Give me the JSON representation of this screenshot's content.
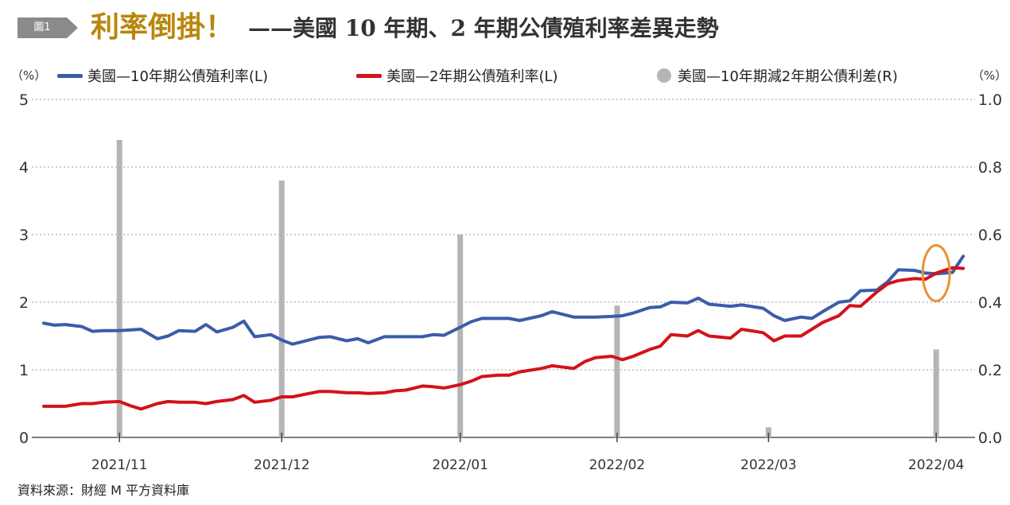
{
  "header": {
    "badge": "圖1",
    "title_main": "利率倒掛！",
    "title_sub": "——美國 10 年期、2 年期公債殖利率差異走勢"
  },
  "legend": {
    "left_unit": "（%）",
    "right_unit": "（%）",
    "items": [
      {
        "label": "美國—10年期公債殖利率(L)",
        "color": "#3a5da8"
      },
      {
        "label": "美國—2年期公債殖利率(L)",
        "color": "#d3121b"
      },
      {
        "label": "美國—10年期減2年期公債利差(R)",
        "color": "#b5b5b5"
      }
    ]
  },
  "source": "資料來源：財經 M 平方資料庫",
  "chart_data": {
    "type": "line",
    "x_ticks": [
      "2021/11",
      "2021/12",
      "2022/01",
      "2022/02",
      "2022/03",
      "2022/04"
    ],
    "y_left_ticks": [
      "0",
      "1",
      "2",
      "3",
      "4",
      "5"
    ],
    "y_right_ticks": [
      "0.0",
      "0.2",
      "0.4",
      "0.6",
      "0.8",
      "1.0"
    ],
    "ylim_left": [
      0,
      5
    ],
    "ylim_right": [
      0,
      1.0
    ],
    "grid": "horizontal dashed",
    "series": [
      {
        "name": "美國—10年期公債殖利率(L)",
        "axis": "left",
        "color": "#3a5da8",
        "x": [
          "2021-10-18",
          "2021-10-20",
          "2021-10-22",
          "2021-10-25",
          "2021-10-27",
          "2021-10-29",
          "2021-11-01",
          "2021-11-03",
          "2021-11-05",
          "2021-11-08",
          "2021-11-10",
          "2021-11-12",
          "2021-11-15",
          "2021-11-17",
          "2021-11-19",
          "2021-11-22",
          "2021-11-24",
          "2021-11-26",
          "2021-11-29",
          "2021-12-01",
          "2021-12-03",
          "2021-12-06",
          "2021-12-08",
          "2021-12-10",
          "2021-12-13",
          "2021-12-15",
          "2021-12-17",
          "2021-12-20",
          "2021-12-22",
          "2021-12-24",
          "2021-12-27",
          "2021-12-29",
          "2021-12-31",
          "2022-01-03",
          "2022-01-05",
          "2022-01-07",
          "2022-01-10",
          "2022-01-12",
          "2022-01-14",
          "2022-01-18",
          "2022-01-20",
          "2022-01-24",
          "2022-01-26",
          "2022-01-28",
          "2022-01-31",
          "2022-02-02",
          "2022-02-04",
          "2022-02-07",
          "2022-02-09",
          "2022-02-11",
          "2022-02-14",
          "2022-02-16",
          "2022-02-18",
          "2022-02-22",
          "2022-02-24",
          "2022-02-28",
          "2022-03-02",
          "2022-03-04",
          "2022-03-07",
          "2022-03-09",
          "2022-03-11",
          "2022-03-14",
          "2022-03-16",
          "2022-03-18",
          "2022-03-21",
          "2022-03-23",
          "2022-03-25",
          "2022-03-28",
          "2022-03-30",
          "2022-04-01",
          "2022-04-04",
          "2022-04-06"
        ],
        "values": [
          1.69,
          1.66,
          1.67,
          1.64,
          1.57,
          1.58,
          1.58,
          1.59,
          1.6,
          1.46,
          1.5,
          1.58,
          1.57,
          1.67,
          1.56,
          1.63,
          1.72,
          1.49,
          1.52,
          1.44,
          1.38,
          1.44,
          1.48,
          1.49,
          1.43,
          1.46,
          1.4,
          1.49,
          1.49,
          1.49,
          1.49,
          1.52,
          1.51,
          1.63,
          1.71,
          1.76,
          1.76,
          1.76,
          1.73,
          1.8,
          1.86,
          1.78,
          1.78,
          1.78,
          1.79,
          1.8,
          1.84,
          1.92,
          1.93,
          2.0,
          1.99,
          2.06,
          1.97,
          1.94,
          1.96,
          1.91,
          1.8,
          1.73,
          1.78,
          1.76,
          1.86,
          2.0,
          2.02,
          2.17,
          2.18,
          2.3,
          2.48,
          2.47,
          2.43,
          2.42,
          2.44,
          2.68
        ]
      },
      {
        "name": "美國—2年期公債殖利率(L)",
        "axis": "left",
        "color": "#d3121b",
        "x": [
          "2021-10-18",
          "2021-10-20",
          "2021-10-22",
          "2021-10-25",
          "2021-10-27",
          "2021-10-29",
          "2021-11-01",
          "2021-11-03",
          "2021-11-05",
          "2021-11-08",
          "2021-11-10",
          "2021-11-12",
          "2021-11-15",
          "2021-11-17",
          "2021-11-19",
          "2021-11-22",
          "2021-11-24",
          "2021-11-26",
          "2021-11-29",
          "2021-12-01",
          "2021-12-03",
          "2021-12-06",
          "2021-12-08",
          "2021-12-10",
          "2021-12-13",
          "2021-12-15",
          "2021-12-17",
          "2021-12-20",
          "2021-12-22",
          "2021-12-24",
          "2021-12-27",
          "2021-12-29",
          "2021-12-31",
          "2022-01-03",
          "2022-01-05",
          "2022-01-07",
          "2022-01-10",
          "2022-01-12",
          "2022-01-14",
          "2022-01-18",
          "2022-01-20",
          "2022-01-24",
          "2022-01-26",
          "2022-01-28",
          "2022-01-31",
          "2022-02-02",
          "2022-02-04",
          "2022-02-07",
          "2022-02-09",
          "2022-02-11",
          "2022-02-14",
          "2022-02-16",
          "2022-02-18",
          "2022-02-22",
          "2022-02-24",
          "2022-02-28",
          "2022-03-02",
          "2022-03-04",
          "2022-03-07",
          "2022-03-09",
          "2022-03-11",
          "2022-03-14",
          "2022-03-16",
          "2022-03-18",
          "2022-03-21",
          "2022-03-23",
          "2022-03-25",
          "2022-03-28",
          "2022-03-30",
          "2022-04-01",
          "2022-04-04",
          "2022-04-06"
        ],
        "values": [
          0.46,
          0.46,
          0.46,
          0.5,
          0.5,
          0.52,
          0.53,
          0.47,
          0.42,
          0.5,
          0.53,
          0.52,
          0.52,
          0.5,
          0.53,
          0.56,
          0.62,
          0.52,
          0.55,
          0.6,
          0.6,
          0.65,
          0.68,
          0.68,
          0.66,
          0.66,
          0.65,
          0.66,
          0.69,
          0.7,
          0.76,
          0.75,
          0.73,
          0.78,
          0.83,
          0.9,
          0.92,
          0.92,
          0.97,
          1.02,
          1.06,
          1.02,
          1.12,
          1.18,
          1.2,
          1.15,
          1.2,
          1.3,
          1.35,
          1.52,
          1.5,
          1.58,
          1.5,
          1.47,
          1.6,
          1.55,
          1.43,
          1.5,
          1.5,
          1.6,
          1.7,
          1.8,
          1.95,
          1.94,
          2.15,
          2.27,
          2.32,
          2.35,
          2.34,
          2.43,
          2.51,
          2.5
        ]
      }
    ],
    "bars": {
      "name": "美國—10年期減2年期公債利差(R)",
      "axis": "right",
      "color": "#b5b5b5",
      "x": [
        "2021-11-01",
        "2021-12-01",
        "2022-01-03",
        "2022-02-01",
        "2022-03-01",
        "2022-04-01"
      ],
      "values": [
        0.88,
        0.76,
        0.6,
        0.39,
        0.03,
        0.26
      ]
    },
    "annotation": {
      "type": "circle",
      "color": "#e8913a",
      "at": "2022-04-01"
    }
  }
}
